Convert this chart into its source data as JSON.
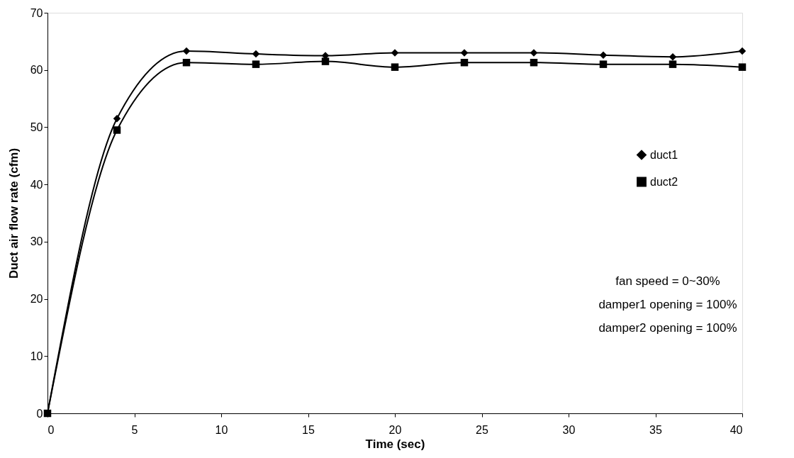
{
  "chart_data": {
    "type": "line",
    "xlabel": "Time (sec)",
    "ylabel": "Duct air flow rate (cfm)",
    "x": [
      0,
      4,
      8,
      12,
      16,
      20,
      24,
      28,
      32,
      36,
      40
    ],
    "series": [
      {
        "name": "duct1",
        "color": "#000000",
        "marker": "diamond",
        "values": [
          0,
          51.5,
          63.3,
          62.8,
          62.5,
          63,
          63,
          63,
          62.6,
          62.3,
          63.3
        ]
      },
      {
        "name": "duct2",
        "color": "#000000",
        "marker": "square",
        "values": [
          0,
          49.5,
          61.3,
          61,
          61.5,
          60.5,
          61.3,
          61.3,
          61,
          61,
          60.5
        ]
      }
    ],
    "xlim": [
      0,
      40
    ],
    "xticks": [
      0,
      5,
      10,
      15,
      20,
      25,
      30,
      35,
      40
    ],
    "ylim": [
      0,
      70
    ],
    "yticks": [
      0,
      10,
      20,
      30,
      40,
      50,
      60,
      70
    ],
    "grid": false,
    "legend": "right",
    "line_style": "solid",
    "annotations": [
      "fan speed = 0~30%",
      "damper1 opening = 100%",
      "damper2 opening = 100%"
    ]
  }
}
